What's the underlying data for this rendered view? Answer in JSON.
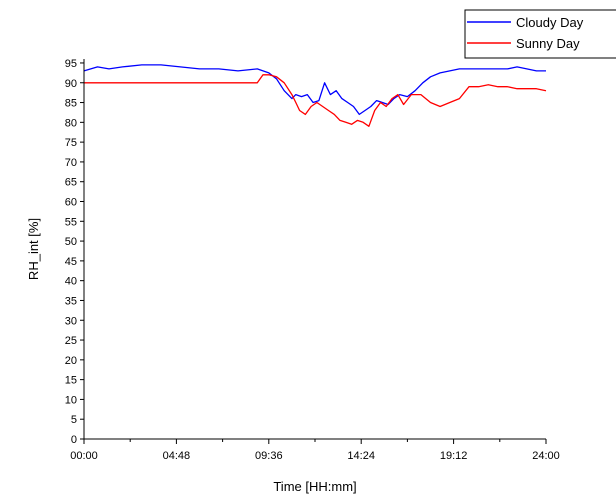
{
  "chart_data": {
    "type": "line",
    "xlabel": "Time [HH:mm]",
    "ylabel": "RH_int [%]",
    "xlim": [
      0,
      24
    ],
    "ylim": [
      0,
      96
    ],
    "x_ticks": [
      "00:00",
      "04:48",
      "09:36",
      "14:24",
      "19:12",
      "24:00"
    ],
    "y_ticks": [
      "0",
      "5",
      "10",
      "15",
      "20",
      "25",
      "30",
      "35",
      "40",
      "45",
      "50",
      "55",
      "60",
      "65",
      "70",
      "75",
      "80",
      "85",
      "90",
      "95"
    ],
    "grid": false,
    "legend_position": "top-right",
    "series": [
      {
        "name": "Cloudy Day",
        "color": "#0000ff",
        "x": [
          0,
          0.7,
          1.3,
          2,
          3,
          4,
          5,
          6,
          7,
          8,
          9,
          9.6,
          10,
          10.4,
          10.8,
          11,
          11.3,
          11.6,
          11.9,
          12.2,
          12.5,
          12.8,
          13.1,
          13.4,
          13.7,
          14,
          14.3,
          14.6,
          14.9,
          15.2,
          15.5,
          15.8,
          16.1,
          16.4,
          16.8,
          17.2,
          17.6,
          18,
          18.5,
          19,
          19.5,
          20,
          20.5,
          21,
          21.5,
          22,
          22.5,
          23,
          23.5,
          24
        ],
        "y": [
          93,
          94,
          93.5,
          94,
          94.5,
          94.5,
          94,
          93.5,
          93.5,
          93,
          93.5,
          92.5,
          91,
          88,
          86,
          87,
          86.5,
          87,
          85,
          85.5,
          90,
          87,
          88,
          86,
          85,
          84,
          82,
          83,
          84,
          85.5,
          85,
          84.5,
          86,
          87,
          86.5,
          88,
          90,
          91.5,
          92.5,
          93,
          93.5,
          93.5,
          93.5,
          93.5,
          93.5,
          93.5,
          94,
          93.5,
          93,
          93
        ]
      },
      {
        "name": "Sunny Day",
        "color": "#ff0000",
        "x": [
          0,
          1,
          2,
          3,
          4,
          5,
          6,
          7,
          8,
          9,
          9.3,
          9.6,
          10,
          10.4,
          10.8,
          11,
          11.2,
          11.5,
          11.8,
          12.1,
          12.4,
          12.7,
          13,
          13.3,
          13.6,
          13.9,
          14.2,
          14.5,
          14.8,
          15.1,
          15.4,
          15.7,
          16,
          16.3,
          16.6,
          17,
          17.5,
          18,
          18.5,
          19,
          19.5,
          20,
          20.5,
          21,
          21.5,
          22,
          22.5,
          23,
          23.5,
          24
        ],
        "y": [
          90,
          90,
          90,
          90,
          90,
          90,
          90,
          90,
          90,
          90,
          92,
          92,
          91.5,
          90,
          87,
          85,
          83,
          82,
          84,
          85,
          84,
          83,
          82,
          80.5,
          80,
          79.5,
          80.5,
          80,
          79,
          83,
          85,
          84,
          86,
          87,
          84.5,
          87,
          87,
          85,
          84,
          85,
          86,
          89,
          89,
          89.5,
          89,
          89,
          88.5,
          88.5,
          88.5,
          88
        ]
      }
    ]
  }
}
